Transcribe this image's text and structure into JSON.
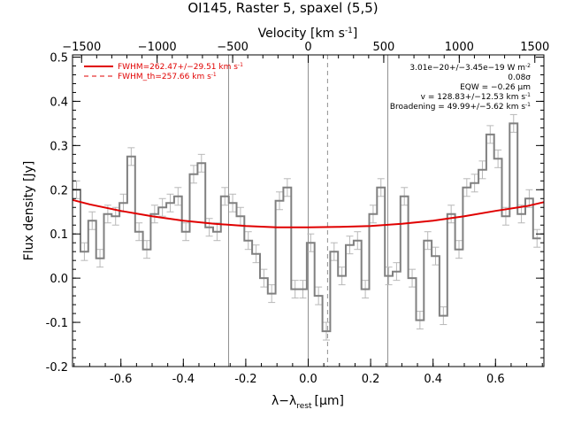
{
  "chart_data": {
    "type": "line",
    "title": "OI145, Raster 5, spaxel (5,5)",
    "xlabel": "λ−λ",
    "xlabel_sub": "rest",
    "xlabel_unit": "[μm]",
    "ylabel": "Flux density [Jy]",
    "top_axis_label": "Velocity [km s",
    "top_axis_label_sup": "-1",
    "top_axis_label_close": "]",
    "xlim": [
      -0.755,
      0.755
    ],
    "ylim": [
      -0.2,
      0.505
    ],
    "top_xlim": [
      -1560,
      1560
    ],
    "x_ticks": [
      "-0.6",
      "-0.4",
      "-0.2",
      "0.0",
      "0.2",
      "0.4",
      "0.6"
    ],
    "x_tick_values": [
      -0.6,
      -0.4,
      -0.2,
      0.0,
      0.2,
      0.4,
      0.6
    ],
    "y_ticks": [
      "-0.2",
      "-0.1",
      "0.0",
      "0.1",
      "0.2",
      "0.3",
      "0.4",
      "0.5"
    ],
    "y_tick_values": [
      -0.2,
      -0.1,
      0.0,
      0.1,
      0.2,
      0.3,
      0.4,
      0.5
    ],
    "top_ticks": [
      "−1500",
      "−1000",
      "−500",
      "0",
      "500",
      "1000",
      "1500"
    ],
    "top_tick_values": [
      -1500,
      -1000,
      -500,
      0,
      500,
      1000,
      1500
    ],
    "grid": false,
    "legend_position": "top-left",
    "legend": [
      {
        "label": "FWHM=262.47+/−29.51 km s",
        "sup": "-1",
        "style": "solid",
        "color": "#e00000"
      },
      {
        "label": "FWHM_th=257.66 km s",
        "sup": "-1",
        "style": "dashed",
        "color": "#e00000"
      }
    ],
    "annotations": [
      {
        "text": "3.01e−20+/−3.45e−19 W m",
        "sup": "-2"
      },
      {
        "text": "0.08σ",
        "sup": ""
      },
      {
        "text": "EQW = −0.26 μm",
        "sup": ""
      },
      {
        "text": "v = 128.83+/−12.53 km s",
        "sup": "-1"
      },
      {
        "text": "Broadening = 49.99+/−5.62 km s",
        "sup": "-1"
      }
    ],
    "vertical_lines": [
      {
        "x": -0.255,
        "style": "solid",
        "color": "#909090"
      },
      {
        "x": 0.0,
        "style": "solid",
        "color": "#909090"
      },
      {
        "x": 0.255,
        "style": "solid",
        "color": "#909090"
      },
      {
        "x": 0.062,
        "style": "dashed",
        "color": "#909090"
      }
    ],
    "series": [
      {
        "type": "step",
        "color": "#808080",
        "error_color": "#b8b8b8",
        "x": [
          -0.742,
          -0.717,
          -0.692,
          -0.667,
          -0.642,
          -0.617,
          -0.592,
          -0.567,
          -0.542,
          -0.517,
          -0.492,
          -0.467,
          -0.442,
          -0.417,
          -0.392,
          -0.367,
          -0.342,
          -0.317,
          -0.292,
          -0.267,
          -0.242,
          -0.217,
          -0.192,
          -0.167,
          -0.142,
          -0.117,
          -0.092,
          -0.067,
          -0.042,
          -0.017,
          0.008,
          0.033,
          0.058,
          0.083,
          0.108,
          0.133,
          0.158,
          0.183,
          0.208,
          0.233,
          0.258,
          0.283,
          0.308,
          0.333,
          0.358,
          0.383,
          0.408,
          0.433,
          0.458,
          0.483,
          0.508,
          0.533,
          0.558,
          0.583,
          0.608,
          0.633,
          0.658,
          0.683,
          0.708,
          0.733
        ],
        "y": [
          0.2,
          0.06,
          0.13,
          0.045,
          0.145,
          0.14,
          0.17,
          0.275,
          0.105,
          0.065,
          0.145,
          0.16,
          0.17,
          0.185,
          0.105,
          0.235,
          0.26,
          0.115,
          0.105,
          0.185,
          0.17,
          0.14,
          0.085,
          0.055,
          0.0,
          -0.035,
          0.175,
          0.205,
          -0.025,
          -0.025,
          0.08,
          -0.04,
          -0.12,
          0.06,
          0.005,
          0.075,
          0.085,
          -0.025,
          0.145,
          0.205,
          0.005,
          0.015,
          0.185,
          0.0,
          -0.095,
          0.085,
          0.05,
          -0.085,
          0.145,
          0.065,
          0.205,
          0.215,
          0.245,
          0.325,
          0.27,
          0.14,
          0.35,
          0.145,
          0.18,
          0.09
        ],
        "err": [
          0.02,
          0.02,
          0.02,
          0.02,
          0.02,
          0.02,
          0.02,
          0.02,
          0.02,
          0.02,
          0.02,
          0.02,
          0.02,
          0.02,
          0.02,
          0.02,
          0.02,
          0.02,
          0.02,
          0.02,
          0.02,
          0.02,
          0.02,
          0.02,
          0.02,
          0.02,
          0.02,
          0.02,
          0.02,
          0.02,
          0.02,
          0.02,
          0.02,
          0.02,
          0.02,
          0.02,
          0.02,
          0.02,
          0.02,
          0.02,
          0.02,
          0.02,
          0.02,
          0.02,
          0.02,
          0.02,
          0.02,
          0.02,
          0.02,
          0.02,
          0.02,
          0.02,
          0.02,
          0.02,
          0.02,
          0.02,
          0.02,
          0.02,
          0.02,
          0.02
        ]
      },
      {
        "type": "line",
        "color": "#e00000",
        "x": [
          -0.755,
          -0.7,
          -0.6,
          -0.5,
          -0.4,
          -0.3,
          -0.2,
          -0.1,
          0.0,
          0.1,
          0.2,
          0.3,
          0.4,
          0.5,
          0.6,
          0.7,
          0.755
        ],
        "y": [
          0.177,
          0.167,
          0.152,
          0.14,
          0.13,
          0.123,
          0.118,
          0.115,
          0.115,
          0.116,
          0.118,
          0.123,
          0.13,
          0.14,
          0.152,
          0.163,
          0.172
        ]
      }
    ]
  }
}
